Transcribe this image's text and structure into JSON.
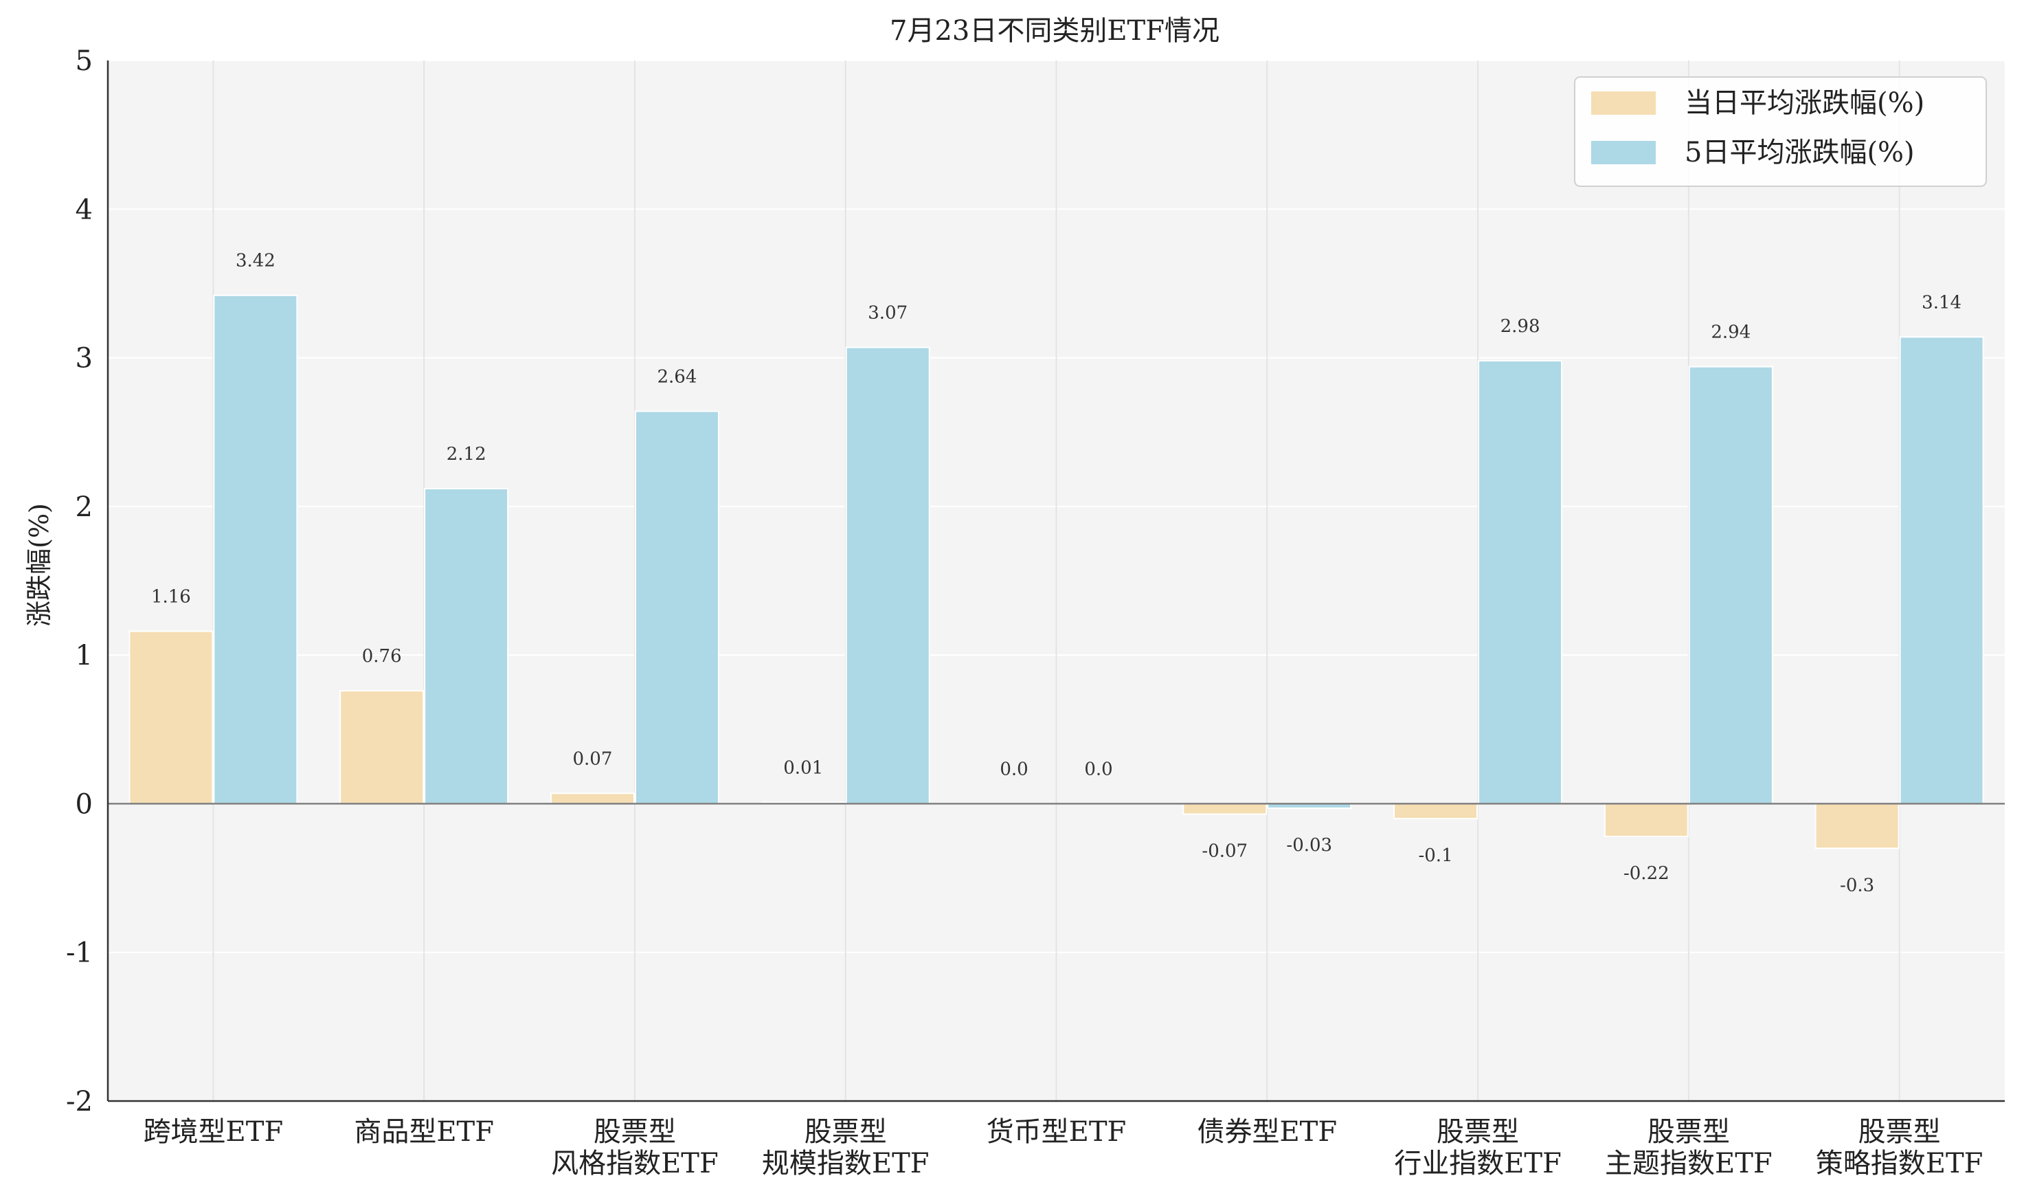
{
  "chart_data": {
    "type": "bar",
    "title": "7月23日不同类别ETF情况",
    "xlabel": "",
    "ylabel": "涨跌幅(%)",
    "ylim": [
      -2,
      5
    ],
    "yticks": [
      "5",
      "4",
      "3",
      "2",
      "1",
      "0",
      "-1",
      "-2"
    ],
    "grid": true,
    "legend_position": "top-right",
    "categories": [
      [
        "跨境型ETF"
      ],
      [
        "商品型ETF"
      ],
      [
        "股票型",
        "风格指数ETF"
      ],
      [
        "股票型",
        "规模指数ETF"
      ],
      [
        "货币型ETF"
      ],
      [
        "债券型ETF"
      ],
      [
        "股票型",
        "行业指数ETF"
      ],
      [
        "股票型",
        "主题指数ETF"
      ],
      [
        "股票型",
        "策略指数ETF"
      ]
    ],
    "series": [
      {
        "name": "当日平均涨跌幅(%)",
        "color": "#F5DEB3",
        "values": [
          1.16,
          0.76,
          0.07,
          0.01,
          0.0,
          -0.07,
          -0.1,
          -0.22,
          -0.3
        ],
        "labels": [
          "1.16",
          "0.76",
          "0.07",
          "0.01",
          "0.0",
          "-0.07",
          "-0.1",
          "-0.22",
          "-0.3"
        ]
      },
      {
        "name": "5日平均涨跌幅(%)",
        "color": "#ADD8E6",
        "values": [
          3.42,
          2.12,
          2.64,
          3.07,
          0.0,
          -0.03,
          2.98,
          2.94,
          3.14
        ],
        "labels": [
          "3.42",
          "2.12",
          "2.64",
          "3.07",
          "0.0",
          "-0.03",
          "2.98",
          "2.94",
          "3.14"
        ]
      }
    ],
    "colors": {
      "plot_background": "#F4F4F4",
      "grid": "#E4E4E4",
      "zero_line": "#808080",
      "axis": "#333333"
    }
  }
}
